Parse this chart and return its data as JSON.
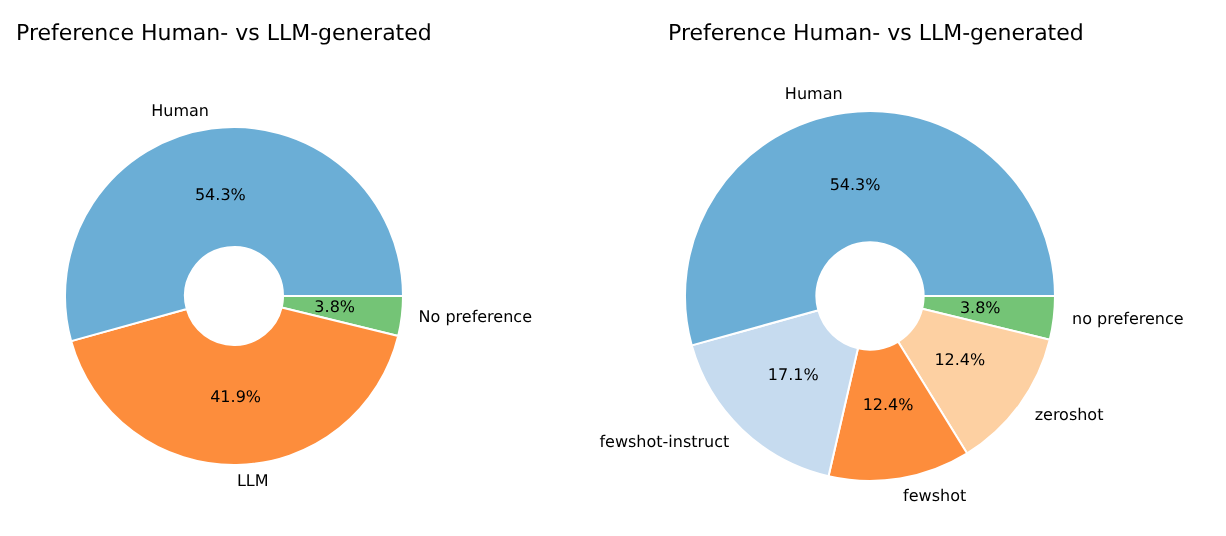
{
  "chart_data": [
    {
      "type": "donut",
      "title": "Preference Human- vs LLM-generated",
      "categories": [
        "Human",
        "LLM",
        "No preference"
      ],
      "values": [
        54.3,
        41.9,
        3.8
      ],
      "colors": [
        "#6baed6",
        "#fd8d3c",
        "#74c476"
      ],
      "value_labels": [
        "54.3%",
        "41.9%",
        "3.8%"
      ],
      "legend": false
    },
    {
      "type": "donut",
      "title": "Preference Human- vs LLM-generated",
      "categories": [
        "Human",
        "fewshot-instruct",
        "fewshot",
        "zeroshot",
        "no preference"
      ],
      "values": [
        54.3,
        17.1,
        12.4,
        12.4,
        3.8
      ],
      "colors": [
        "#6baed6",
        "#c6dbef",
        "#fd8d3c",
        "#fdd0a2",
        "#74c476"
      ],
      "value_labels": [
        "54.3%",
        "17.1%",
        "12.4%",
        "12.4%",
        "3.8%"
      ],
      "legend": false
    }
  ]
}
